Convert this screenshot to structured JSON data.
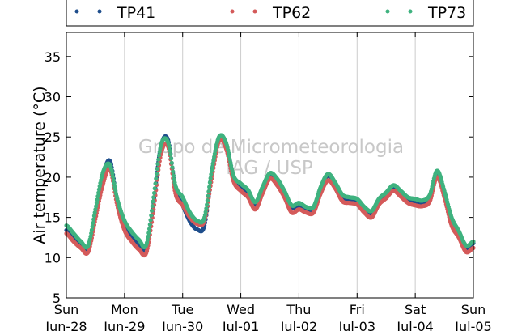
{
  "chart_data": {
    "type": "scatter",
    "ylabel": "Air temperature (°C)",
    "ylim": [
      5,
      38
    ],
    "yticks": [
      5,
      10,
      15,
      20,
      25,
      30,
      35
    ],
    "xlim": [
      "2015-06-28 00:00",
      "2015-07-05 00:00"
    ],
    "xticks": [
      {
        "day": "Sun",
        "date": "Jun-28"
      },
      {
        "day": "Mon",
        "date": "Jun-29"
      },
      {
        "day": "Tue",
        "date": "Jun-30"
      },
      {
        "day": "Wed",
        "date": "Jul-01"
      },
      {
        "day": "Thu",
        "date": "Jul-02"
      },
      {
        "day": "Fri",
        "date": "Jul-03"
      },
      {
        "day": "Sat",
        "date": "Jul-04"
      },
      {
        "day": "Sun",
        "date": "Jul-05"
      }
    ],
    "grid": "vertical",
    "legend_position": "top",
    "watermark": [
      "Grupo de Micrometeorologia",
      "IAG / USP"
    ],
    "x": [
      "2015-06-28 00:00",
      "2015-06-28 03:00",
      "2015-06-28 06:00",
      "2015-06-28 09:00",
      "2015-06-28 12:00",
      "2015-06-28 15:00",
      "2015-06-28 18:00",
      "2015-06-28 21:00",
      "2015-06-29 00:00",
      "2015-06-29 03:00",
      "2015-06-29 06:00",
      "2015-06-29 09:00",
      "2015-06-29 12:00",
      "2015-06-29 15:00",
      "2015-06-29 18:00",
      "2015-06-29 21:00",
      "2015-06-30 00:00",
      "2015-06-30 03:00",
      "2015-06-30 06:00",
      "2015-06-30 09:00",
      "2015-06-30 12:00",
      "2015-06-30 15:00",
      "2015-06-30 18:00",
      "2015-06-30 21:00",
      "2015-07-01 00:00",
      "2015-07-01 03:00",
      "2015-07-01 06:00",
      "2015-07-01 09:00",
      "2015-07-01 12:00",
      "2015-07-01 15:00",
      "2015-07-01 18:00",
      "2015-07-01 21:00",
      "2015-07-02 00:00",
      "2015-07-02 03:00",
      "2015-07-02 06:00",
      "2015-07-02 09:00",
      "2015-07-02 12:00",
      "2015-07-02 15:00",
      "2015-07-02 18:00",
      "2015-07-02 21:00",
      "2015-07-03 00:00",
      "2015-07-03 03:00",
      "2015-07-03 06:00",
      "2015-07-03 09:00",
      "2015-07-03 12:00",
      "2015-07-03 15:00",
      "2015-07-03 18:00",
      "2015-07-03 21:00",
      "2015-07-04 00:00",
      "2015-07-04 03:00",
      "2015-07-04 06:00",
      "2015-07-04 09:00",
      "2015-07-04 12:00",
      "2015-07-04 15:00",
      "2015-07-04 18:00",
      "2015-07-04 21:00",
      "2015-07-05 00:00"
    ],
    "series": [
      {
        "name": "TP41",
        "color": "#1f4e8c",
        "values": [
          13.4,
          12.6,
          11.6,
          11.0,
          15.5,
          20.0,
          22.0,
          17.0,
          14.0,
          12.6,
          11.6,
          11.0,
          16.8,
          23.8,
          24.6,
          18.5,
          16.5,
          14.5,
          13.5,
          14.0,
          20.5,
          24.8,
          24.0,
          20.0,
          18.8,
          18.0,
          16.5,
          18.5,
          20.3,
          19.5,
          18.0,
          16.2,
          16.5,
          16.0,
          16.0,
          18.5,
          20.2,
          19.0,
          17.5,
          17.2,
          17.0,
          16.0,
          15.4,
          17.0,
          17.8,
          18.8,
          18.0,
          17.2,
          17.0,
          16.8,
          17.5,
          20.5,
          18.0,
          14.5,
          13.0,
          11.0,
          11.8
        ]
      },
      {
        "name": "TP62",
        "color": "#d45a5a",
        "values": [
          13.0,
          12.0,
          11.2,
          10.7,
          14.8,
          19.0,
          21.0,
          16.5,
          13.4,
          12.0,
          11.0,
          10.6,
          16.0,
          22.8,
          23.8,
          18.0,
          16.5,
          15.0,
          14.2,
          14.6,
          19.8,
          24.5,
          23.5,
          19.5,
          18.3,
          17.5,
          16.0,
          18.0,
          19.8,
          19.0,
          17.5,
          15.6,
          16.0,
          15.6,
          15.6,
          18.0,
          19.6,
          18.6,
          17.0,
          16.8,
          16.6,
          15.6,
          15.0,
          16.6,
          17.4,
          18.3,
          17.6,
          16.8,
          16.5,
          16.4,
          17.0,
          20.0,
          17.5,
          14.0,
          12.5,
          10.7,
          11.2
        ]
      },
      {
        "name": "TP73",
        "color": "#3fb27f",
        "values": [
          14.0,
          13.0,
          12.0,
          11.5,
          16.0,
          20.5,
          21.5,
          17.3,
          14.6,
          13.2,
          12.2,
          11.6,
          17.5,
          23.9,
          24.3,
          19.0,
          17.5,
          15.6,
          14.6,
          15.0,
          20.8,
          25.0,
          24.2,
          20.2,
          19.2,
          18.4,
          16.9,
          18.8,
          20.5,
          19.8,
          18.3,
          16.5,
          16.8,
          16.3,
          16.3,
          18.8,
          20.4,
          19.3,
          17.8,
          17.5,
          17.3,
          16.3,
          15.8,
          17.3,
          18.1,
          19.0,
          18.3,
          17.5,
          17.3,
          17.1,
          17.8,
          20.8,
          18.3,
          15.0,
          13.3,
          11.5,
          12.0
        ]
      }
    ]
  }
}
